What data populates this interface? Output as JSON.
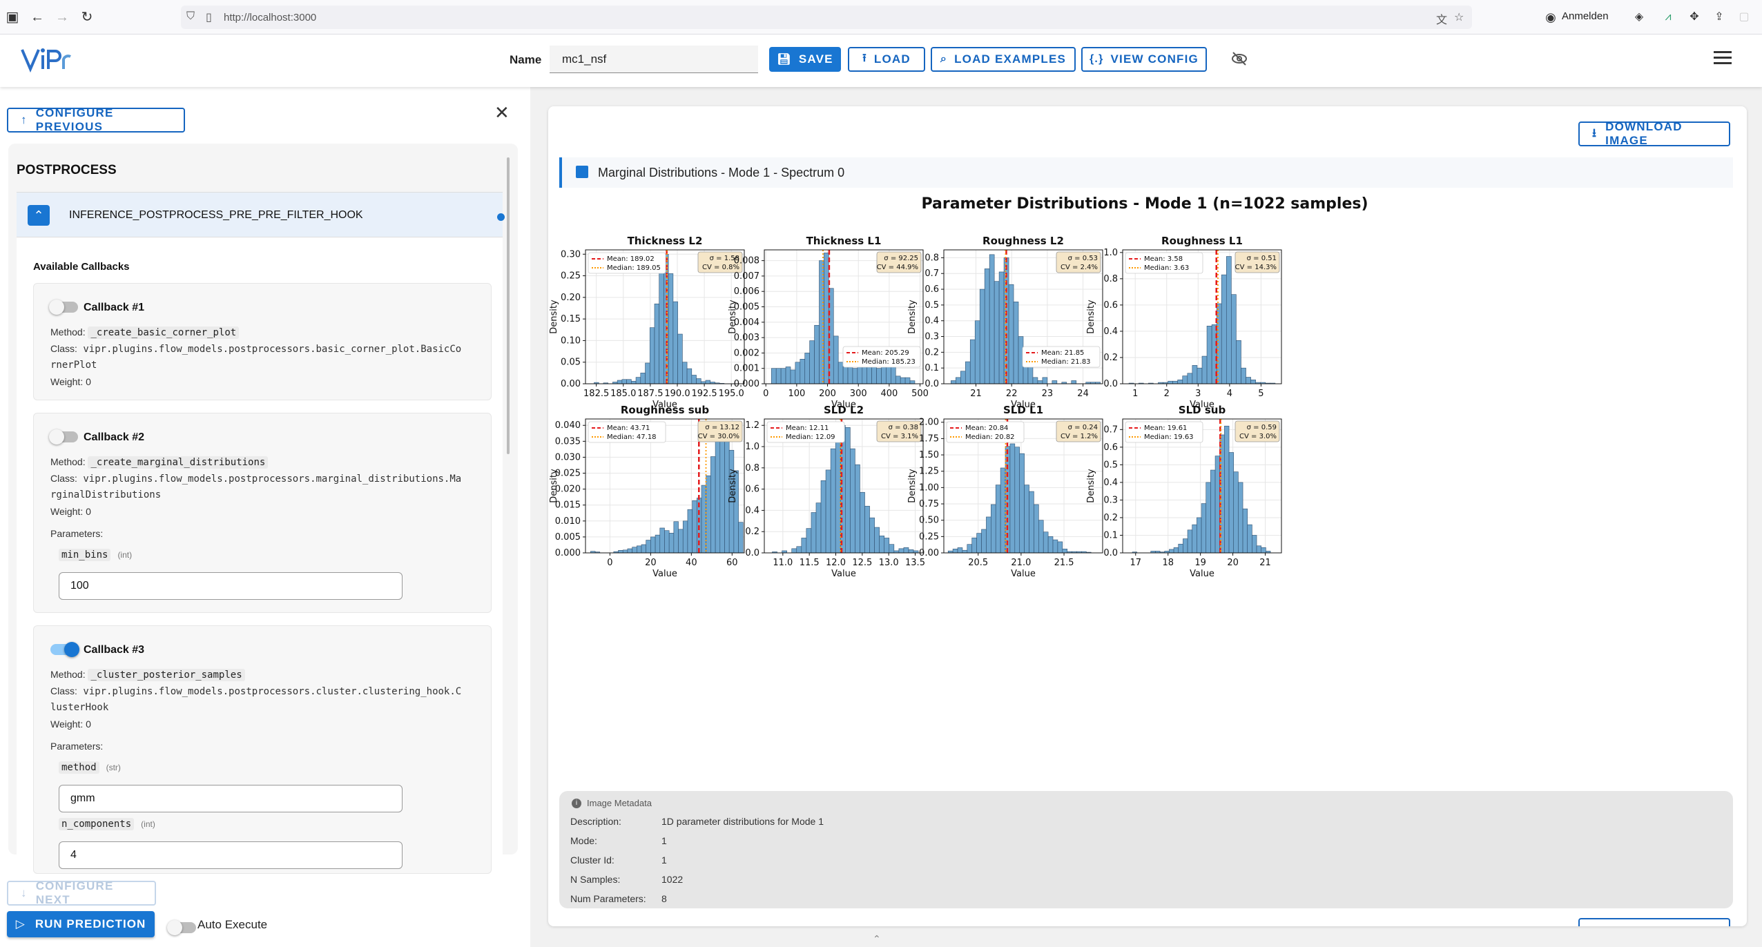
{
  "browser": {
    "url": "http://localhost:3000",
    "account_label": "Anmelden"
  },
  "app": {
    "logo_text": "ViPr",
    "name_label": "Name",
    "name_value": "mc1_nsf",
    "buttons": {
      "save": "SAVE",
      "load": "LOAD",
      "load_examples": "LOAD EXAMPLES",
      "view_config": "VIEW CONFIG"
    }
  },
  "left": {
    "configure_previous": "CONFIGURE PREVIOUS",
    "section_title": "POSTPROCESS",
    "hook_name": "INFERENCE_POSTPROCESS_PRE_PRE_FILTER_HOOK",
    "available_title": "Available Callbacks",
    "method_label": "Method:",
    "class_label": "Class:",
    "weight_label": "Weight:",
    "parameters_label": "Parameters:",
    "callbacks": [
      {
        "title": "Callback #1",
        "enabled": false,
        "method": "_create_basic_corner_plot",
        "class_l1": "vipr.plugins.flow_models.postprocessors.basic_corner_plot.BasicCo",
        "class_l2": "rnerPlot",
        "weight": "0"
      },
      {
        "title": "Callback #2",
        "enabled": false,
        "method": "_create_marginal_distributions",
        "class_l1": "vipr.plugins.flow_models.postprocessors.marginal_distributions.Ma",
        "class_l2": "rginalDistributions",
        "weight": "0",
        "params": [
          {
            "name": "min_bins",
            "type": "(int)",
            "value": "100"
          }
        ]
      },
      {
        "title": "Callback #3",
        "enabled": true,
        "method": "_cluster_posterior_samples",
        "class_l1": "vipr.plugins.flow_models.postprocessors.cluster.clustering_hook.C",
        "class_l2": "lusterHook",
        "weight": "0",
        "params": [
          {
            "name": "method",
            "type": "(str)",
            "value": "gmm"
          },
          {
            "name": "n_components",
            "type": "(int)",
            "value": "4"
          }
        ]
      }
    ],
    "configure_next": "CONFIGURE NEXT",
    "run_prediction": "RUN PREDICTION",
    "auto_execute": "Auto Execute"
  },
  "right": {
    "download_image": "DOWNLOAD IMAGE",
    "image_title": "Marginal Distributions - Mode 1 - Spectrum 0",
    "metadata": {
      "header": "Image Metadata",
      "rows": [
        {
          "label": "Description:",
          "value": "1D parameter distributions for Mode 1"
        },
        {
          "label": "Mode:",
          "value": "1"
        },
        {
          "label": "Cluster Id:",
          "value": "1"
        },
        {
          "label": "N Samples:",
          "value": "1022"
        },
        {
          "label": "Num Parameters:",
          "value": "8"
        }
      ]
    }
  },
  "colors": {
    "accent": "#1976d2",
    "bar": "#6ea6cf",
    "mean": "#e41a1c",
    "median": "#ff9900"
  },
  "chart_data": {
    "type": "bar",
    "title": "Parameter Distributions - Mode 1 (n=1022 samples)",
    "xlabel": "Value",
    "ylabel": "Density",
    "plots": [
      {
        "title": "Thickness L2",
        "xlim": [
          181.5,
          196.2
        ],
        "ylim": [
          0,
          0.31
        ],
        "xticks": [
          182.5,
          185.0,
          187.5,
          190.0,
          192.5,
          195.0
        ],
        "xtick_labels": [
          "182.5",
          "185.0",
          "187.5",
          "190.0",
          "192.5",
          "195.0"
        ],
        "yticks": [
          0,
          0.05,
          0.1,
          0.15,
          0.2,
          0.25,
          0.3
        ],
        "ytick_labels": [
          "0.00",
          "0.05",
          "0.10",
          "0.15",
          "0.20",
          "0.25",
          "0.30"
        ],
        "bin_start": 182.3,
        "bin_width": 0.43,
        "values": [
          0.003,
          0,
          0.002,
          0,
          0.004,
          0.008,
          0.01,
          0.01,
          0.006,
          0.015,
          0.025,
          0.048,
          0.13,
          0.185,
          0.275,
          0.3,
          0.255,
          0.19,
          0.115,
          0.05,
          0.035,
          0.02,
          0.012,
          0.005,
          0.008,
          0.004,
          0.002,
          0.001
        ],
        "mean": 189.02,
        "median": 189.05,
        "mean_label": "Mean: 189.02",
        "median_label": "Median: 189.05",
        "stats": [
          "σ = 1.58",
          "CV = 0.8%"
        ],
        "legend": "top-left"
      },
      {
        "title": "Thickness L1",
        "xlim": [
          -5,
          510
        ],
        "ylim": [
          0,
          0.0087
        ],
        "xticks": [
          0,
          100,
          200,
          300,
          400,
          500
        ],
        "xtick_labels": [
          "0",
          "100",
          "200",
          "300",
          "400",
          "500"
        ],
        "yticks": [
          0,
          0.001,
          0.002,
          0.003,
          0.004,
          0.005,
          0.006,
          0.007,
          0.008
        ],
        "ytick_labels": [
          "0.000",
          "0.001",
          "0.002",
          "0.003",
          "0.004",
          "0.005",
          "0.006",
          "0.007",
          "0.008"
        ],
        "bin_start": 18,
        "bin_width": 15.5,
        "values": [
          0.001,
          0.001,
          0.001,
          0.0011,
          0.0009,
          0.0014,
          0.0016,
          0.002,
          0.0028,
          0.0038,
          0.008,
          0.0085,
          0.0062,
          0.0031,
          0.0014,
          0.0011,
          0.0013,
          0.001,
          0.0014,
          0.0011,
          0.0017,
          0.0011,
          0.001,
          0.0011,
          0.0011,
          0.0012,
          0.0005,
          0.0004,
          0.0004,
          0.0002
        ],
        "mean": 205.29,
        "median": 185.23,
        "mean_label": "Mean: 205.29",
        "median_label": "Median: 185.23",
        "stats": [
          "σ = 92.25",
          "CV = 44.9%"
        ],
        "legend": "center-right"
      },
      {
        "title": "Roughness L2",
        "xlim": [
          20.1,
          24.55
        ],
        "ylim": [
          0,
          0.85
        ],
        "xticks": [
          21,
          22,
          23,
          24
        ],
        "xtick_labels": [
          "21",
          "22",
          "23",
          "24"
        ],
        "yticks": [
          0,
          0.1,
          0.2,
          0.3,
          0.4,
          0.5,
          0.6,
          0.7,
          0.8
        ],
        "ytick_labels": [
          "0.0",
          "0.1",
          "0.2",
          "0.3",
          "0.4",
          "0.5",
          "0.6",
          "0.7",
          "0.8"
        ],
        "bin_start": 20.3,
        "bin_width": 0.135,
        "values": [
          0.02,
          0.04,
          0.08,
          0.14,
          0.28,
          0.4,
          0.6,
          0.73,
          0.82,
          0.65,
          0.71,
          0.8,
          0.63,
          0.52,
          0.3,
          0.17,
          0.11,
          0.04,
          0.02,
          0.04,
          0,
          0.02,
          0,
          0.01,
          0,
          0.02,
          0,
          0,
          0.01,
          0.01,
          0.01
        ],
        "mean": 21.85,
        "median": 21.83,
        "mean_label": "Mean: 21.85",
        "median_label": "Median: 21.83",
        "stats": [
          "σ = 0.53",
          "CV = 2.4%"
        ],
        "legend": "center-right"
      },
      {
        "title": "Roughness L1",
        "xlim": [
          0.6,
          5.65
        ],
        "ylim": [
          0,
          1.02
        ],
        "xticks": [
          1,
          2,
          3,
          4,
          5
        ],
        "xtick_labels": [
          "1",
          "2",
          "3",
          "4",
          "5"
        ],
        "yticks": [
          0,
          0.2,
          0.4,
          0.6,
          0.8,
          1.0
        ],
        "ytick_labels": [
          "0.0",
          "0.2",
          "0.4",
          "0.6",
          "0.8",
          "1.0"
        ],
        "bin_start": 0.8,
        "bin_width": 0.155,
        "values": [
          0.005,
          0,
          0.005,
          0,
          0.005,
          0,
          0.01,
          0.01,
          0.02,
          0.02,
          0.03,
          0.06,
          0.08,
          0.14,
          0.12,
          0.21,
          0.44,
          0.45,
          0.61,
          0.83,
          0.97,
          0.68,
          0.33,
          0.12,
          0.05,
          0.03,
          0.01,
          0.01,
          0.005,
          0.005
        ],
        "mean": 3.58,
        "median": 3.63,
        "mean_label": "Mean: 3.58",
        "median_label": "Median: 3.63",
        "stats": [
          "σ = 0.51",
          "CV = 14.3%"
        ],
        "legend": "top-left"
      },
      {
        "title": "Roughness sub",
        "xlim": [
          -12,
          66
        ],
        "ylim": [
          0,
          0.042
        ],
        "xticks": [
          0,
          20,
          40,
          60
        ],
        "xtick_labels": [
          "0",
          "20",
          "40",
          "60"
        ],
        "yticks": [
          0,
          0.005,
          0.01,
          0.015,
          0.02,
          0.025,
          0.03,
          0.035,
          0.04
        ],
        "ytick_labels": [
          "0.000",
          "0.005",
          "0.010",
          "0.015",
          "0.020",
          "0.025",
          "0.030",
          "0.035",
          "0.040"
        ],
        "bin_start": -9.5,
        "bin_width": 2.27,
        "values": [
          0.0005,
          0.0003,
          0,
          0,
          0,
          0.0004,
          0.0008,
          0.0009,
          0.0013,
          0.0018,
          0.0022,
          0.0026,
          0.004,
          0.005,
          0.0056,
          0.0078,
          0.007,
          0.0062,
          0.0098,
          0.0074,
          0.01,
          0.0136,
          0.0164,
          0.0172,
          0.0212,
          0.0242,
          0.0302,
          0.0382,
          0.0398,
          0.0382,
          0.0322,
          0.0258,
          0.0096
        ],
        "mean": 43.71,
        "median": 47.18,
        "mean_label": "Mean: 43.71",
        "median_label": "Median: 47.18",
        "stats": [
          "σ = 13.12",
          "CV = 30.0%"
        ],
        "legend": "top-left"
      },
      {
        "title": "SLD L2",
        "xlim": [
          10.65,
          13.65
        ],
        "ylim": [
          0,
          1.26
        ],
        "xticks": [
          11.0,
          11.5,
          12.0,
          12.5,
          13.0,
          13.5
        ],
        "xtick_labels": [
          "11.0",
          "11.5",
          "12.0",
          "12.5",
          "13.0",
          "13.5"
        ],
        "yticks": [
          0,
          0.2,
          0.4,
          0.6,
          0.8,
          1.0,
          1.2
        ],
        "ytick_labels": [
          "0.0",
          "0.2",
          "0.4",
          "0.6",
          "0.8",
          "1.0",
          "1.2"
        ],
        "bin_start": 10.8,
        "bin_width": 0.092,
        "values": [
          0.01,
          0,
          0.02,
          0,
          0.04,
          0.06,
          0.14,
          0.23,
          0.38,
          0.47,
          0.68,
          0.78,
          0.98,
          1.07,
          1.2,
          1.18,
          0.98,
          0.83,
          0.57,
          0.44,
          0.33,
          0.24,
          0.16,
          0.14,
          0.08,
          0.02,
          0.04,
          0.05,
          0.03,
          0.02
        ],
        "mean": 12.11,
        "median": 12.09,
        "mean_label": "Mean: 12.11",
        "median_label": "Median: 12.09",
        "stats": [
          "σ = 0.38",
          "CV = 3.1%"
        ],
        "legend": "top-left"
      },
      {
        "title": "SLD L1",
        "xlim": [
          20.1,
          21.95
        ],
        "ylim": [
          0,
          2.05
        ],
        "xticks": [
          20.5,
          21.0,
          21.5
        ],
        "xtick_labels": [
          "20.5",
          "21.0",
          "21.5"
        ],
        "yticks": [
          0,
          0.25,
          0.5,
          0.75,
          1.0,
          1.25,
          1.5,
          1.75,
          2.0
        ],
        "ytick_labels": [
          "0.00",
          "0.25",
          "0.50",
          "0.75",
          "1.00",
          "1.25",
          "1.50",
          "1.75",
          "2.00"
        ],
        "bin_start": 20.15,
        "bin_width": 0.0555,
        "values": [
          0.03,
          0.06,
          0.08,
          0.04,
          0.13,
          0.23,
          0.3,
          0.36,
          0.55,
          0.74,
          1.04,
          1.3,
          1.63,
          1.67,
          1.62,
          1.52,
          1.04,
          0.94,
          0.74,
          0.5,
          0.32,
          0.25,
          0.2,
          0.17,
          0.06,
          0.02,
          0.02,
          0.02,
          0.02,
          0.01
        ],
        "mean": 20.84,
        "median": 20.82,
        "mean_label": "Mean: 20.84",
        "median_label": "Median: 20.82",
        "stats": [
          "σ = 0.24",
          "CV = 1.2%"
        ],
        "legend": "top-left"
      },
      {
        "title": "SLD sub",
        "xlim": [
          16.6,
          21.5
        ],
        "ylim": [
          0,
          0.76
        ],
        "xticks": [
          17,
          18,
          19,
          20,
          21
        ],
        "xtick_labels": [
          "17",
          "18",
          "19",
          "20",
          "21"
        ],
        "yticks": [
          0,
          0.1,
          0.2,
          0.3,
          0.4,
          0.5,
          0.6,
          0.7
        ],
        "ytick_labels": [
          "0.0",
          "0.1",
          "0.2",
          "0.3",
          "0.4",
          "0.5",
          "0.6",
          "0.7"
        ],
        "bin_start": 16.9,
        "bin_width": 0.142,
        "values": [
          0.005,
          0,
          0,
          0,
          0.01,
          0.01,
          0.005,
          0.01,
          0.02,
          0.03,
          0.05,
          0.08,
          0.13,
          0.16,
          0.2,
          0.28,
          0.4,
          0.47,
          0.55,
          0.67,
          0.72,
          0.57,
          0.46,
          0.4,
          0.25,
          0.16,
          0.1,
          0.04,
          0.03,
          0.01
        ],
        "mean": 19.61,
        "median": 19.63,
        "mean_label": "Mean: 19.61",
        "median_label": "Median: 19.63",
        "stats": [
          "σ = 0.59",
          "CV = 3.0%"
        ],
        "legend": "top-left"
      }
    ]
  }
}
